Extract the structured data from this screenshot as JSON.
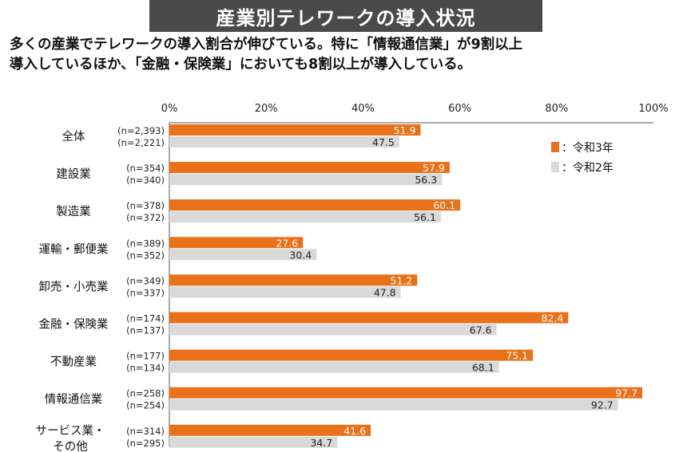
{
  "title": "産業別テレワークの導入状況",
  "subtitle_lines": [
    "多くの産業でテレワークの導入割合が伸びている。特に「情報通信業」が9割以上",
    "導入しているほか、「金融・保険業」においても8割以上が導入している。"
  ],
  "colors": {
    "r3": "#e8711a",
    "r2": "#d9d9d9",
    "axis": "#555555"
  },
  "chart_data": {
    "type": "bar",
    "orientation": "horizontal",
    "title": "産業別テレワークの導入状況",
    "xlabel": "",
    "ylabel": "",
    "xlim": [
      0,
      100
    ],
    "xticks": [
      "0%",
      "20%",
      "40%",
      "60%",
      "80%",
      "100%"
    ],
    "grid": false,
    "legend_position": "top-right",
    "categories": [
      {
        "label": [
          "全体"
        ],
        "n": [
          "(n=2,393)",
          "(n=2,221)"
        ]
      },
      {
        "label": [
          "建設業"
        ],
        "n": [
          "(n=354)",
          "(n=340)"
        ]
      },
      {
        "label": [
          "製造業"
        ],
        "n": [
          "(n=378)",
          "(n=372)"
        ]
      },
      {
        "label": [
          "運輸・郵便業"
        ],
        "n": [
          "(n=389)",
          "(n=352)"
        ]
      },
      {
        "label": [
          "卸売・小売業"
        ],
        "n": [
          "(n=349)",
          "(n=337)"
        ]
      },
      {
        "label": [
          "金融・保険業"
        ],
        "n": [
          "(n=174)",
          "(n=137)"
        ]
      },
      {
        "label": [
          "不動産業"
        ],
        "n": [
          "(n=177)",
          "(n=134)"
        ]
      },
      {
        "label": [
          "情報通信業"
        ],
        "n": [
          "(n=258)",
          "(n=254)"
        ]
      },
      {
        "label": [
          "サービス業・",
          "その他"
        ],
        "n": [
          "(n=314)",
          "(n=295)"
        ]
      }
    ],
    "series": [
      {
        "name": "令和3年",
        "legend_label": "：令和3年",
        "color": "#e8711a",
        "values": [
          51.9,
          57.9,
          60.1,
          27.6,
          51.2,
          82.4,
          75.1,
          97.7,
          41.6
        ],
        "labels": [
          "51.9",
          "57.9",
          "60.1",
          "27.6",
          "51.2",
          "82.4",
          "75.1",
          "97.7",
          "41.6"
        ]
      },
      {
        "name": "令和2年",
        "legend_label": "：令和2年",
        "color": "#d9d9d9",
        "values": [
          47.5,
          56.3,
          56.1,
          30.4,
          47.8,
          67.6,
          68.1,
          92.7,
          34.7
        ],
        "labels": [
          "47.5",
          "56.3",
          "56.1",
          "30.4",
          "47.8",
          "67.6",
          "68.1",
          "92.7",
          "34.7"
        ]
      }
    ]
  }
}
